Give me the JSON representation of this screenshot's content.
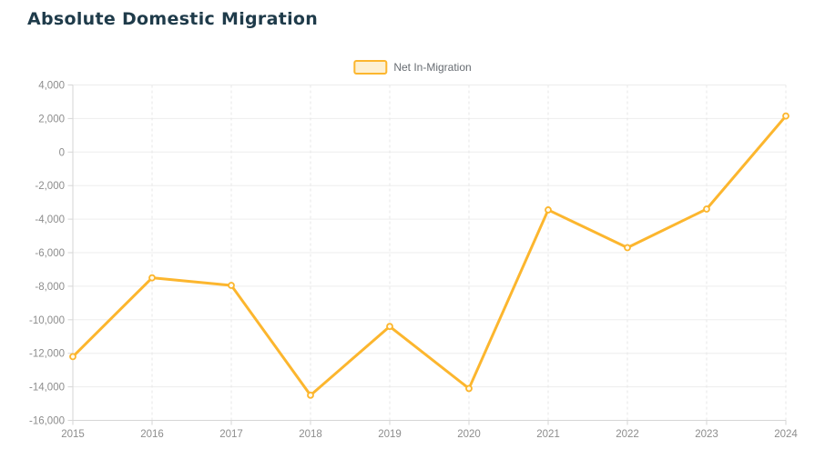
{
  "header": {
    "title": "Absolute Domestic Migration"
  },
  "legend": {
    "items": [
      {
        "label": "Net In-Migration"
      }
    ]
  },
  "colors": {
    "title": "#1f3b4a",
    "line": "#fcb62e",
    "legend_fill": "#fdf0d2",
    "marker_fill": "#fffaec",
    "axis_label": "#8d8d8d",
    "legend_text": "#676c72",
    "grid_h": "#ededed",
    "grid_v": "#e7e7e7",
    "axis_line": "#d6d6d6"
  },
  "chart_data": {
    "type": "line",
    "title": "Absolute Domestic Migration",
    "categories": [
      "2015",
      "2016",
      "2017",
      "2018",
      "2019",
      "2020",
      "2021",
      "2022",
      "2023",
      "2024"
    ],
    "series": [
      {
        "name": "Net In-Migration",
        "values": [
          -12200,
          -7500,
          -7950,
          -14500,
          -10400,
          -14100,
          -3450,
          -5700,
          -3400,
          2150
        ]
      }
    ],
    "ylim": [
      -16000,
      4000
    ],
    "y_ticks": [
      4000,
      2000,
      0,
      -2000,
      -4000,
      -6000,
      -8000,
      -10000,
      -12000,
      -14000,
      -16000
    ],
    "y_tick_labels": [
      "4,000",
      "2,000",
      "0",
      "-2,000",
      "-4,000",
      "-6,000",
      "-8,000",
      "-10,000",
      "-12,000",
      "-14,000",
      "-16,000"
    ],
    "xlabel": "",
    "ylabel": "",
    "grid": true,
    "legend_position": "top-center"
  }
}
